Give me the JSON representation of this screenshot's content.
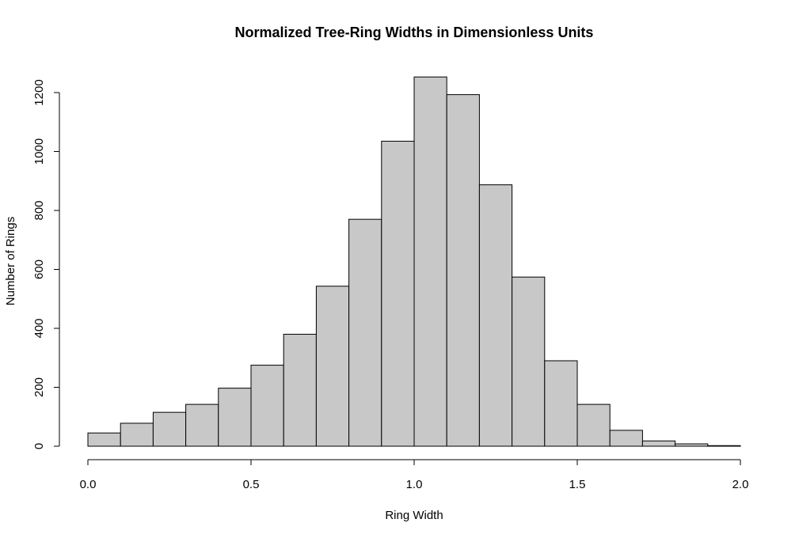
{
  "chart_data": {
    "type": "bar",
    "title": "Normalized Tree-Ring Widths in Dimensionless Units",
    "xlabel": "Ring Width",
    "ylabel": "Number of Rings",
    "bin_edges": [
      0.0,
      0.1,
      0.2,
      0.3,
      0.4,
      0.5,
      0.6,
      0.7,
      0.8,
      0.9,
      1.0,
      1.1,
      1.2,
      1.3,
      1.4,
      1.5,
      1.6,
      1.7,
      1.8,
      1.9,
      2.0
    ],
    "values": [
      45,
      78,
      115,
      142,
      197,
      275,
      380,
      543,
      770,
      1035,
      1253,
      1193,
      887,
      574,
      290,
      142,
      54,
      18,
      8,
      2
    ],
    "xlim": [
      0,
      2
    ],
    "ylim": [
      0,
      1250
    ],
    "x_ticks": [
      0.0,
      0.5,
      1.0,
      1.5,
      2.0
    ],
    "x_tick_labels": [
      "0.0",
      "0.5",
      "1.0",
      "1.5",
      "2.0"
    ],
    "y_ticks": [
      0,
      200,
      400,
      600,
      800,
      1000,
      1200
    ],
    "y_tick_labels": [
      "0",
      "200",
      "400",
      "600",
      "800",
      "1000",
      "1200"
    ],
    "bar_fill": "#c8c8c8",
    "bar_stroke": "#000000",
    "grid": false,
    "legend": "none"
  }
}
